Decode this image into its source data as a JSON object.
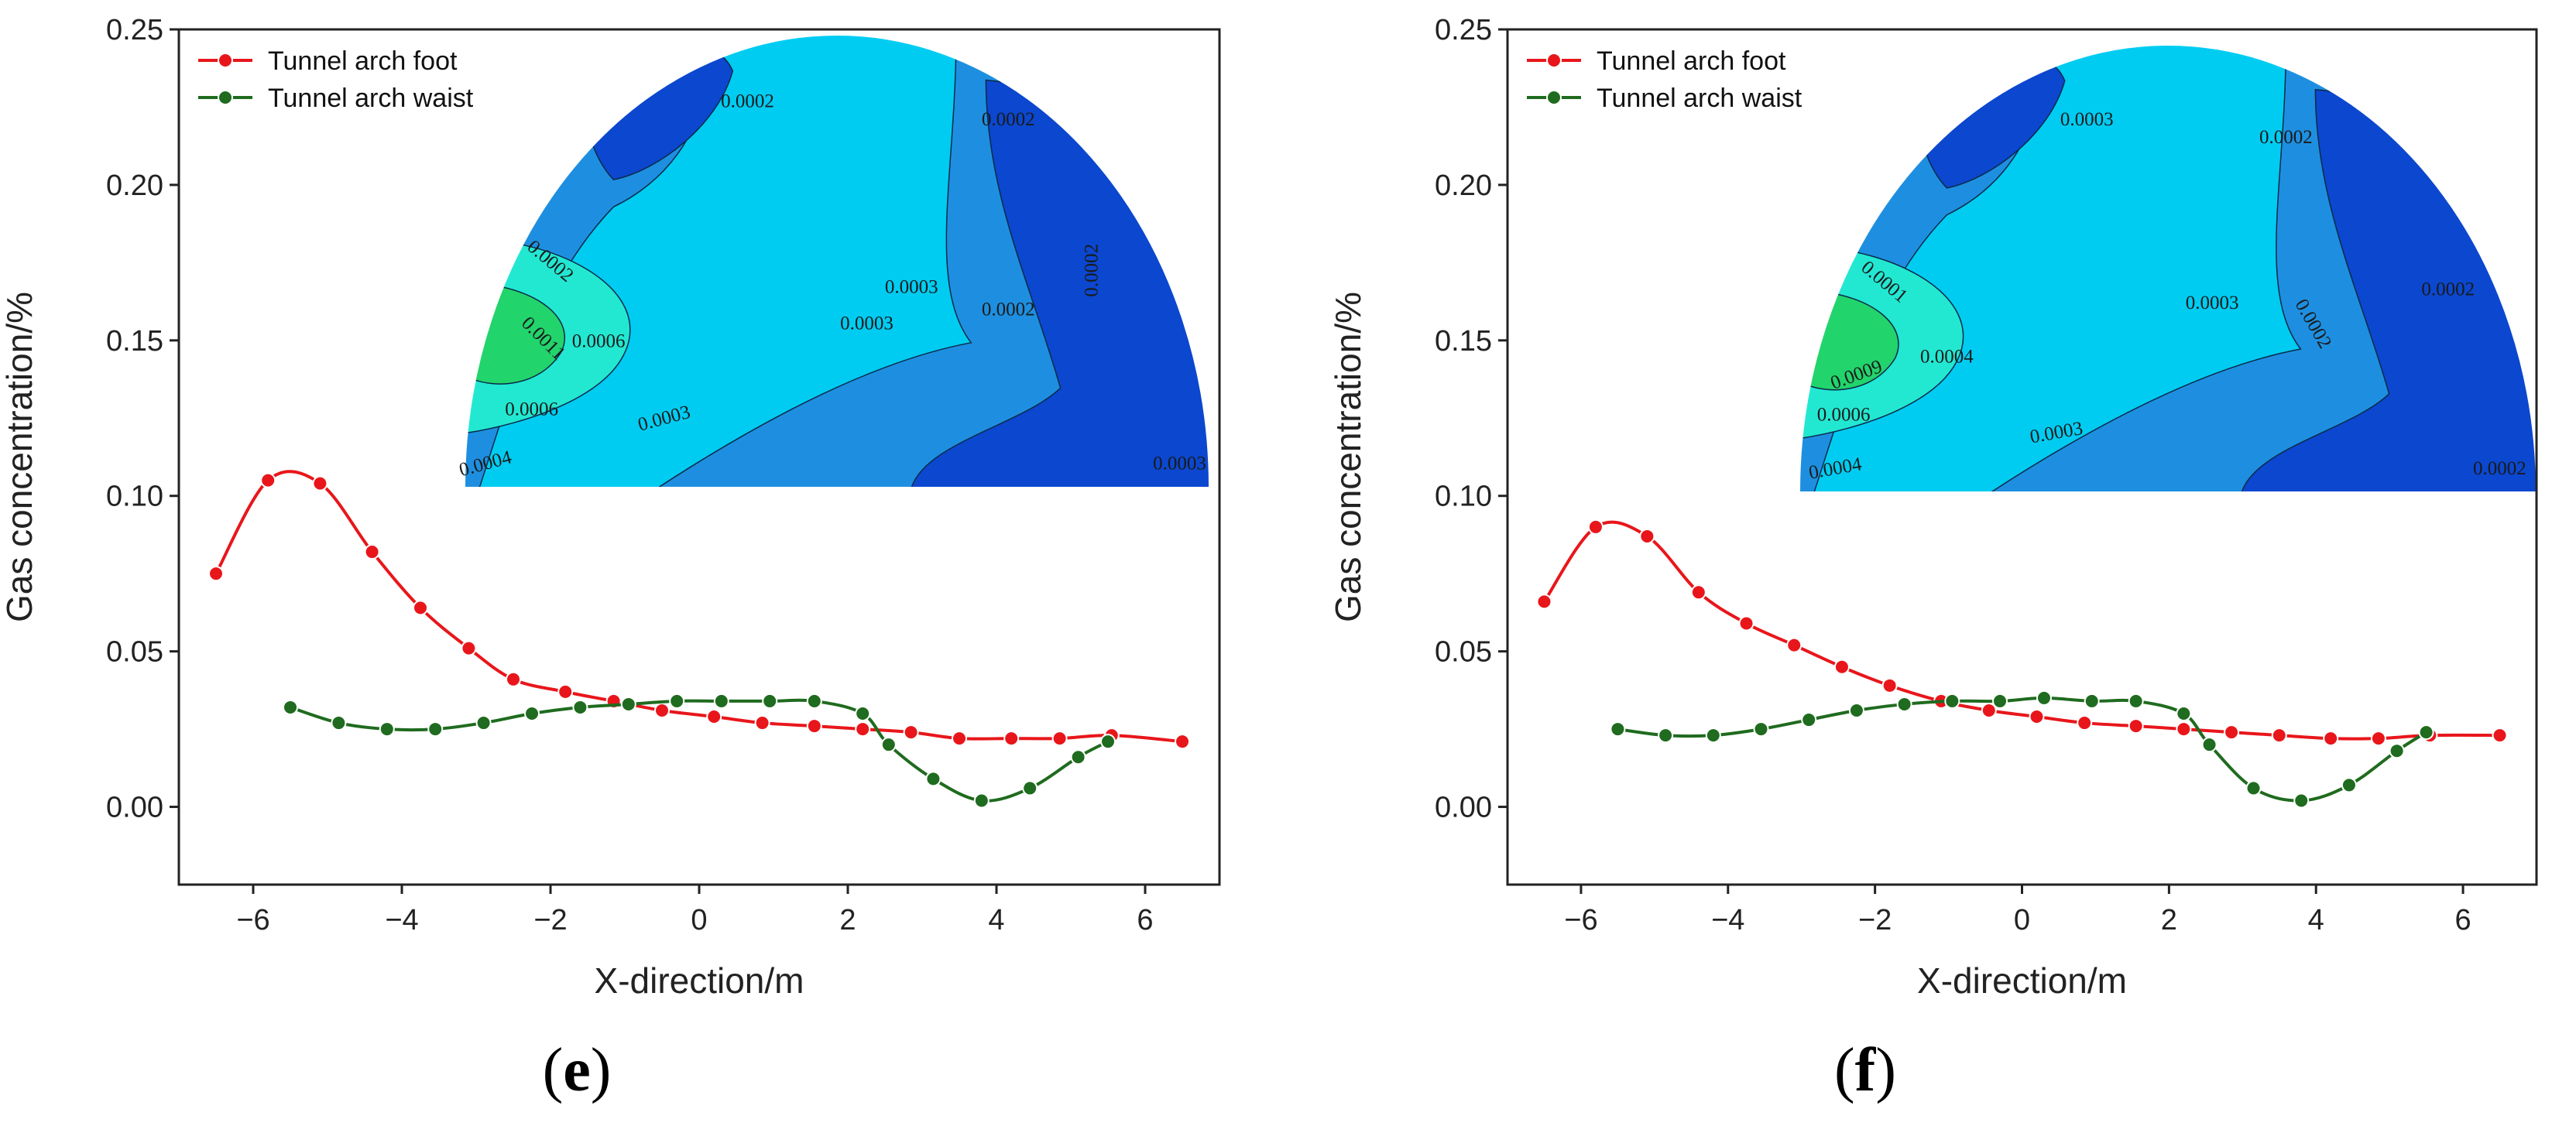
{
  "chart_data": [
    {
      "type": "line",
      "panel_label": "e",
      "xlabel": "X-direction/m",
      "ylabel": "Gas concentration/%",
      "xlim": [
        -7,
        7
      ],
      "ylim": [
        -0.025,
        0.25
      ],
      "xticks": [
        -6,
        -4,
        -2,
        0,
        2,
        4,
        6
      ],
      "yticks": [
        0.0,
        0.05,
        0.1,
        0.15,
        0.2,
        0.25
      ],
      "xtick_labels": [
        "−6",
        "−4",
        "−2",
        "0",
        "2",
        "4",
        "6"
      ],
      "ytick_labels": [
        "0.00",
        "0.05",
        "0.10",
        "0.15",
        "0.20",
        "0.25"
      ],
      "legend": [
        "Tunnel arch foot",
        "Tunnel arch waist"
      ],
      "series": [
        {
          "name": "Tunnel arch foot",
          "color": "#e8161b",
          "x": [
            -6.5,
            -5.8,
            -5.1,
            -4.4,
            -3.75,
            -3.1,
            -2.5,
            -1.8,
            -1.15,
            -0.5,
            0.2,
            0.85,
            1.55,
            2.2,
            2.85,
            3.5,
            4.2,
            4.85,
            5.55,
            6.5
          ],
          "y": [
            0.075,
            0.105,
            0.104,
            0.082,
            0.064,
            0.051,
            0.041,
            0.037,
            0.034,
            0.031,
            0.029,
            0.027,
            0.026,
            0.025,
            0.024,
            0.022,
            0.022,
            0.022,
            0.023,
            0.021
          ]
        },
        {
          "name": "Tunnel arch waist",
          "color": "#1f6b1f",
          "x": [
            -5.5,
            -4.85,
            -4.2,
            -3.55,
            -2.9,
            -2.25,
            -1.6,
            -0.95,
            -0.3,
            0.3,
            0.95,
            1.55,
            2.2,
            2.55,
            3.15,
            3.8,
            4.45,
            5.1,
            5.5
          ],
          "y": [
            0.032,
            0.027,
            0.025,
            0.025,
            0.027,
            0.03,
            0.032,
            0.033,
            0.034,
            0.034,
            0.034,
            0.034,
            0.03,
            0.02,
            0.009,
            0.002,
            0.006,
            0.016,
            0.021
          ]
        }
      ],
      "contour_labels": [
        "0.0002",
        "0.0002",
        "0.0002",
        "0.0003",
        "0.0002",
        "0.0002",
        "0.0003",
        "0.0011",
        "0.0006",
        "0.0006",
        "0.0003",
        "0.0004",
        "0.0003"
      ]
    },
    {
      "type": "line",
      "panel_label": "f",
      "xlabel": "X-direction/m",
      "ylabel": "Gas concentration/%",
      "xlim": [
        -7,
        7
      ],
      "ylim": [
        -0.025,
        0.25
      ],
      "xticks": [
        -6,
        -4,
        -2,
        0,
        2,
        4,
        6
      ],
      "yticks": [
        0.0,
        0.05,
        0.1,
        0.15,
        0.2,
        0.25
      ],
      "xtick_labels": [
        "−6",
        "−4",
        "−2",
        "0",
        "2",
        "4",
        "6"
      ],
      "ytick_labels": [
        "0.00",
        "0.05",
        "0.10",
        "0.15",
        "0.20",
        "0.25"
      ],
      "legend": [
        "Tunnel arch foot",
        "Tunnel arch waist"
      ],
      "series": [
        {
          "name": "Tunnel arch foot",
          "color": "#e8161b",
          "x": [
            -6.5,
            -5.8,
            -5.1,
            -4.4,
            -3.75,
            -3.1,
            -2.45,
            -1.8,
            -1.1,
            -0.45,
            0.2,
            0.85,
            1.55,
            2.2,
            2.85,
            3.5,
            4.2,
            4.85,
            5.55,
            6.5
          ],
          "y": [
            0.066,
            0.09,
            0.087,
            0.069,
            0.059,
            0.052,
            0.045,
            0.039,
            0.034,
            0.031,
            0.029,
            0.027,
            0.026,
            0.025,
            0.024,
            0.023,
            0.022,
            0.022,
            0.023,
            0.023
          ]
        },
        {
          "name": "Tunnel arch waist",
          "color": "#1f6b1f",
          "x": [
            -5.5,
            -4.85,
            -4.2,
            -3.55,
            -2.9,
            -2.25,
            -1.6,
            -0.95,
            -0.3,
            0.3,
            0.95,
            1.55,
            2.2,
            2.55,
            3.15,
            3.8,
            4.45,
            5.1,
            5.5
          ],
          "y": [
            0.025,
            0.023,
            0.023,
            0.025,
            0.028,
            0.031,
            0.033,
            0.034,
            0.034,
            0.035,
            0.034,
            0.034,
            0.03,
            0.02,
            0.006,
            0.002,
            0.007,
            0.018,
            0.024
          ]
        }
      ],
      "contour_labels": [
        "0.0003",
        "0.0002",
        "0.0002",
        "0.0003",
        "0.0002",
        "0.0001",
        "0.0009",
        "0.0004",
        "0.0006",
        "0.0003",
        "0.0004",
        "0.0002"
      ]
    }
  ],
  "colors": {
    "contour_lightest": "#00ccf2",
    "contour_mid": "#1e8fe0",
    "contour_dark": "#0b47cf",
    "contour_cyan_high": "#22e8d2",
    "contour_green": "#22d46c"
  }
}
